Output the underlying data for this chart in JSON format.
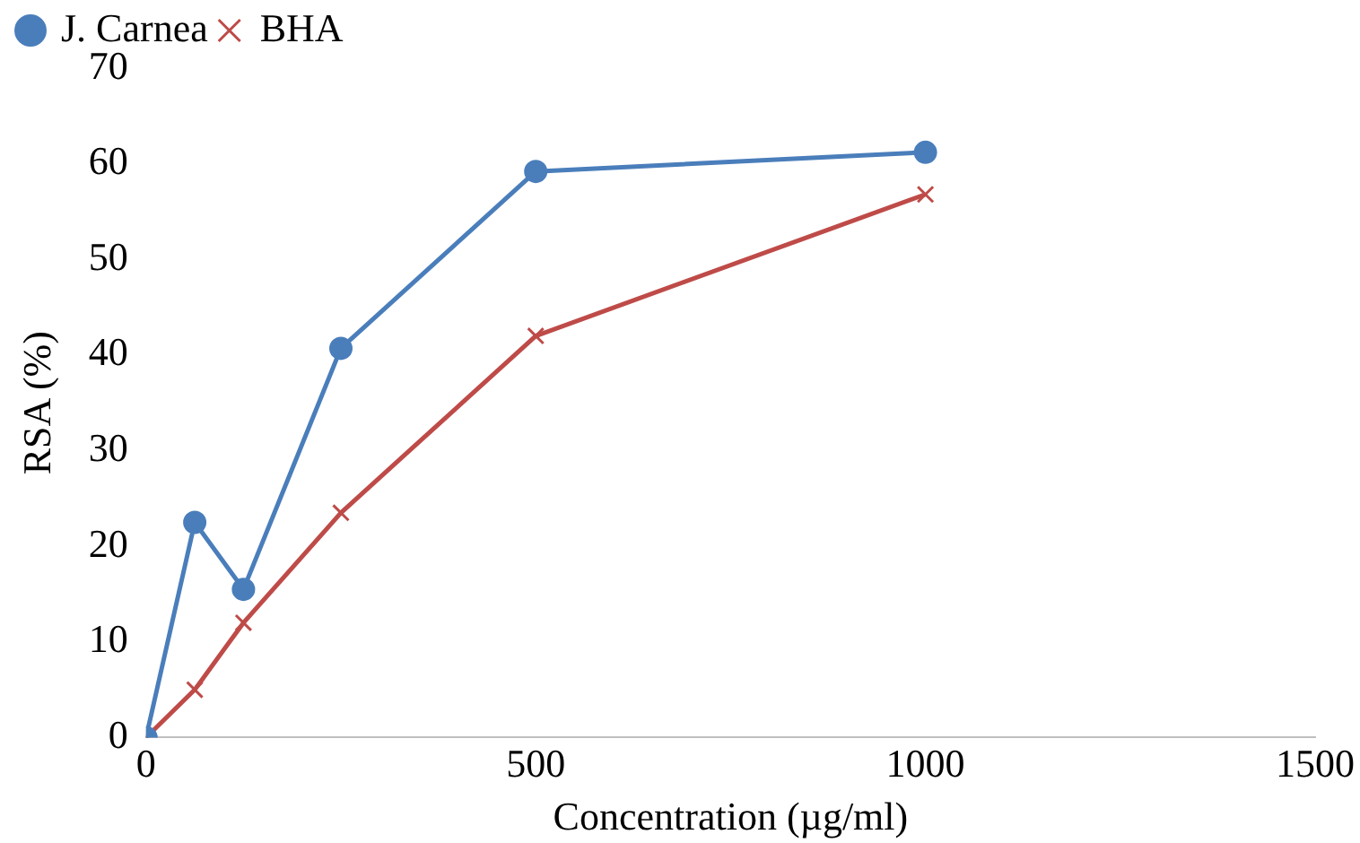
{
  "chart_data": {
    "type": "line",
    "xlabel": "Concentration (µg/ml)",
    "ylabel": "RSA (%)",
    "x": [
      0,
      62.5,
      125,
      250,
      500,
      1000
    ],
    "series": [
      {
        "name": "J. Carnea",
        "color": "#4a7ebb",
        "marker": "circle",
        "values": [
          0,
          22.5,
          15.5,
          40.7,
          59.2,
          61.2
        ]
      },
      {
        "name": "BHA",
        "color": "#be4b48",
        "marker": "cross",
        "values": [
          0,
          5,
          12,
          23.5,
          42,
          56.8
        ]
      }
    ],
    "xlim": [
      0,
      1500
    ],
    "xticks": [
      0,
      500,
      1000,
      1500
    ],
    "ylim": [
      0,
      70
    ],
    "yticks": [
      0,
      10,
      20,
      30,
      40,
      50,
      60,
      70
    ],
    "grid": false,
    "legend": "top left",
    "line_style": "solid"
  }
}
